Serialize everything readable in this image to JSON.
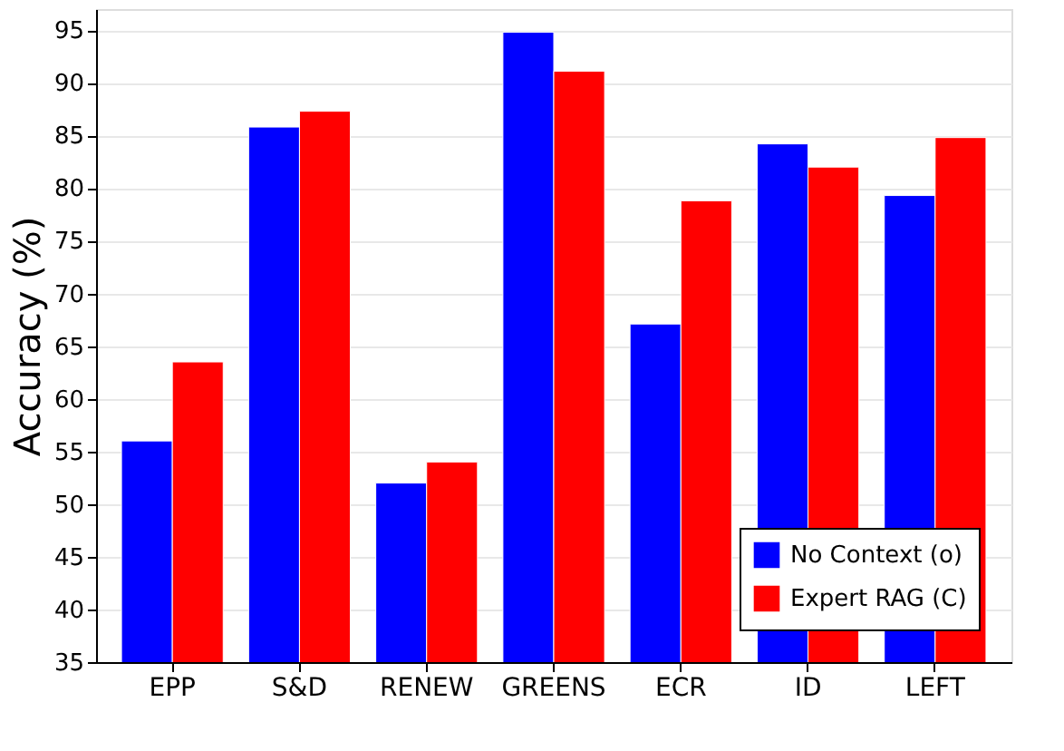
{
  "chart_data": {
    "type": "bar",
    "ylabel": "Accuracy (%)",
    "categories": [
      "EPP",
      "S&D",
      "RENEW",
      "GREENS",
      "ECR",
      "ID",
      "LEFT"
    ],
    "series": [
      {
        "name": "No Context (o)",
        "color": "#0000ff",
        "values": [
          56.0,
          85.8,
          52.0,
          94.8,
          67.1,
          84.2,
          79.3
        ]
      },
      {
        "name": "Expert RAG (C)",
        "color": "#ff0000",
        "values": [
          63.5,
          87.3,
          54.0,
          91.1,
          78.8,
          82.0,
          84.8
        ]
      }
    ],
    "ylim": [
      35,
      97
    ],
    "yticks": [
      35,
      40,
      45,
      50,
      55,
      60,
      65,
      70,
      75,
      80,
      85,
      90,
      95
    ],
    "grid": "y",
    "legend": "bottom right"
  }
}
